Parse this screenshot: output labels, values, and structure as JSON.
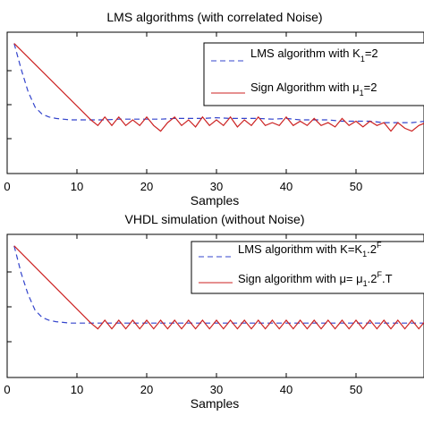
{
  "chart_data": [
    {
      "type": "line",
      "title": "LMS algorithms (with correlated Noise)",
      "xlabel": "Samples",
      "ylabel": "",
      "xlim": [
        0,
        60
      ],
      "ylim": [
        0,
        1
      ],
      "xticks": [
        "0",
        "10",
        "20",
        "30",
        "40",
        "50"
      ],
      "legend_position": "top-right",
      "series": [
        {
          "name": "LMS algorithm with K1=2",
          "legend_text": "LMS algorithm with K",
          "legend_sub": "1",
          "legend_tail": "=2",
          "color": "#3344cc",
          "style": "dashed",
          "x": [
            1,
            2,
            3,
            4,
            5,
            6,
            7,
            8,
            9,
            10,
            11,
            12,
            14,
            16,
            18,
            20,
            22,
            24,
            26,
            28,
            30,
            32,
            34,
            36,
            38,
            40,
            42,
            44,
            46,
            48,
            50,
            52,
            54,
            56,
            58,
            60
          ],
          "y": [
            0.92,
            0.74,
            0.58,
            0.47,
            0.42,
            0.4,
            0.39,
            0.385,
            0.38,
            0.38,
            0.38,
            0.38,
            0.38,
            0.385,
            0.385,
            0.385,
            0.385,
            0.39,
            0.39,
            0.39,
            0.395,
            0.39,
            0.39,
            0.39,
            0.385,
            0.39,
            0.38,
            0.38,
            0.38,
            0.37,
            0.37,
            0.37,
            0.36,
            0.36,
            0.36,
            0.37
          ]
        },
        {
          "name": "Sign Algorithm with μ1=2",
          "legend_text": "Sign Algorithm with μ",
          "legend_sub": "1",
          "legend_tail": "=2",
          "color": "#cc2222",
          "style": "solid",
          "x": [
            1,
            12,
            13,
            14,
            15,
            16,
            17,
            18,
            19,
            20,
            21,
            22,
            23,
            24,
            25,
            26,
            27,
            28,
            29,
            30,
            31,
            32,
            33,
            34,
            35,
            36,
            37,
            38,
            39,
            40,
            41,
            42,
            43,
            44,
            45,
            46,
            47,
            48,
            49,
            50,
            51,
            52,
            53,
            54,
            55,
            56,
            57,
            58,
            59,
            60
          ],
          "y": [
            0.92,
            0.38,
            0.34,
            0.4,
            0.34,
            0.4,
            0.34,
            0.38,
            0.34,
            0.4,
            0.34,
            0.3,
            0.36,
            0.4,
            0.34,
            0.38,
            0.33,
            0.4,
            0.34,
            0.38,
            0.34,
            0.4,
            0.33,
            0.38,
            0.34,
            0.4,
            0.34,
            0.36,
            0.34,
            0.4,
            0.34,
            0.37,
            0.34,
            0.39,
            0.34,
            0.36,
            0.33,
            0.39,
            0.34,
            0.37,
            0.33,
            0.37,
            0.34,
            0.36,
            0.3,
            0.36,
            0.32,
            0.3,
            0.34,
            0.36
          ]
        }
      ]
    },
    {
      "type": "line",
      "title": "VHDL simulation (without Noise)",
      "xlabel": "Samples",
      "ylabel": "",
      "xlim": [
        0,
        60
      ],
      "ylim": [
        0,
        1
      ],
      "xticks": [
        "0",
        "10",
        "20",
        "30",
        "40",
        "50"
      ],
      "legend_position": "top-right",
      "series": [
        {
          "name": "LMS algorithm with K=K1.2F",
          "legend_text": "LMS algorithm with K=K",
          "legend_sub": "1",
          "legend_tail": ".2",
          "legend_sup": "F",
          "color": "#3344cc",
          "style": "dashed",
          "x": [
            1,
            2,
            3,
            4,
            5,
            6,
            7,
            8,
            9,
            10,
            11,
            12,
            14,
            16,
            18,
            20,
            22,
            24,
            26,
            28,
            30,
            32,
            34,
            36,
            38,
            40,
            42,
            44,
            46,
            48,
            50,
            52,
            54,
            56,
            58,
            60
          ],
          "y": [
            0.92,
            0.73,
            0.58,
            0.47,
            0.42,
            0.4,
            0.39,
            0.385,
            0.38,
            0.38,
            0.38,
            0.38,
            0.38,
            0.38,
            0.38,
            0.38,
            0.38,
            0.38,
            0.38,
            0.38,
            0.38,
            0.38,
            0.38,
            0.38,
            0.38,
            0.38,
            0.38,
            0.38,
            0.38,
            0.38,
            0.38,
            0.38,
            0.38,
            0.38,
            0.38,
            0.38
          ]
        },
        {
          "name": "Sign algorithm with μ=μ1.2F.T",
          "legend_text": "Sign algorithm with μ= μ",
          "legend_sub": "1",
          "legend_tail": ".2",
          "legend_sup": "F",
          "legend_end": ".T",
          "color": "#cc2222",
          "style": "solid",
          "x": [
            1,
            12,
            13,
            14,
            15,
            16,
            17,
            18,
            19,
            20,
            21,
            22,
            23,
            24,
            25,
            26,
            27,
            28,
            29,
            30,
            31,
            32,
            33,
            34,
            35,
            36,
            37,
            38,
            39,
            40,
            41,
            42,
            43,
            44,
            45,
            46,
            47,
            48,
            49,
            50,
            51,
            52,
            53,
            54,
            55,
            56,
            57,
            58,
            59,
            60
          ],
          "y": [
            0.92,
            0.38,
            0.34,
            0.4,
            0.34,
            0.4,
            0.34,
            0.4,
            0.34,
            0.4,
            0.34,
            0.4,
            0.34,
            0.4,
            0.34,
            0.4,
            0.34,
            0.4,
            0.34,
            0.4,
            0.34,
            0.4,
            0.34,
            0.4,
            0.34,
            0.4,
            0.34,
            0.4,
            0.34,
            0.4,
            0.34,
            0.4,
            0.34,
            0.4,
            0.34,
            0.4,
            0.34,
            0.4,
            0.34,
            0.4,
            0.34,
            0.4,
            0.34,
            0.4,
            0.34,
            0.4,
            0.34,
            0.4,
            0.34,
            0.4
          ]
        }
      ]
    }
  ]
}
